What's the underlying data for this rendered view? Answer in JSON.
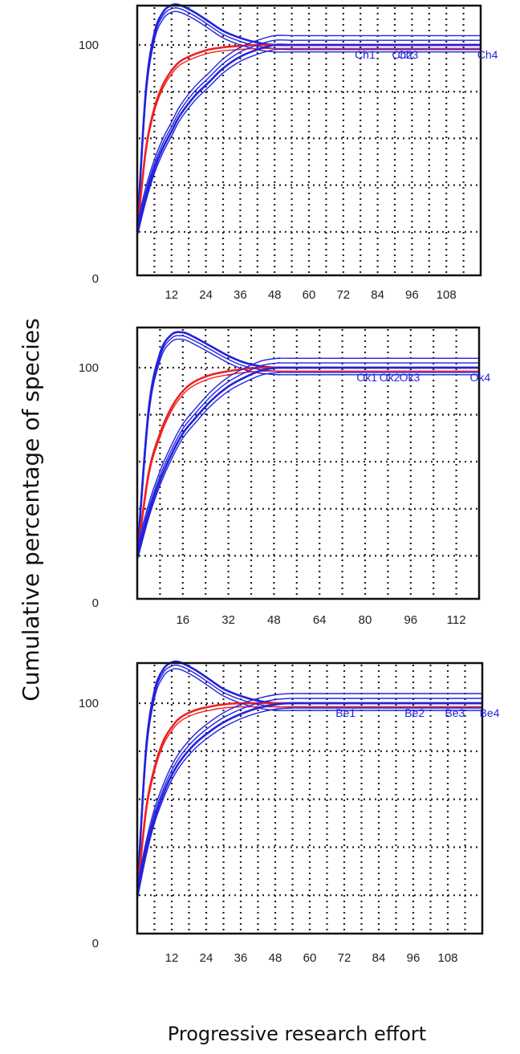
{
  "figure": {
    "ylabel": "Cumulative percentage of species",
    "xlabel": "Progressive research effort"
  },
  "colors": {
    "extremes": "#2222dd",
    "mean": "#ee2222",
    "grid": "#222222",
    "frame": "#111111",
    "label": "#2222dd"
  },
  "chart_data": [
    {
      "type": "line",
      "xlim": [
        0,
        120
      ],
      "ylim": [
        0,
        120
      ],
      "x_ticks": [
        12,
        24,
        36,
        48,
        60,
        72,
        84,
        96,
        108
      ],
      "y_ticks": [
        0,
        100
      ],
      "end_labels": [
        {
          "text": "Ch1",
          "x": 76
        },
        {
          "text": "Ch2",
          "x": 89
        },
        {
          "text": "Ch3",
          "x": 91
        },
        {
          "text": "Ch4",
          "x": 126
        }
      ],
      "series": [
        {
          "role": "upper",
          "x": [
            0,
            3,
            6,
            9,
            12,
            15,
            20,
            25,
            30,
            36,
            42,
            48,
            54,
            60,
            120
          ],
          "y": [
            20,
            80,
            105,
            114,
            117,
            117,
            114,
            110,
            106,
            103,
            101,
            100,
            100,
            100,
            100
          ]
        },
        {
          "role": "mean",
          "x": [
            0,
            3,
            6,
            9,
            12,
            15,
            20,
            25,
            30,
            36,
            42,
            48,
            54,
            60,
            120
          ],
          "y": [
            20,
            55,
            73,
            83,
            89,
            93,
            96,
            98,
            99,
            99.6,
            100,
            100,
            100,
            100,
            100
          ]
        },
        {
          "role": "lower",
          "x": [
            0,
            3,
            6,
            9,
            12,
            15,
            20,
            25,
            30,
            36,
            42,
            48,
            54,
            60,
            120
          ],
          "y": [
            20,
            35,
            47,
            56,
            63,
            70,
            78,
            84,
            90,
            95,
            98,
            100,
            100,
            100,
            100
          ]
        }
      ]
    },
    {
      "type": "line",
      "xlim": [
        0,
        120
      ],
      "ylim": [
        0,
        120
      ],
      "x_ticks": [
        16,
        32,
        48,
        64,
        80,
        96,
        112
      ],
      "y_ticks": [
        0,
        100
      ],
      "end_labels": [
        {
          "text": "Ok1",
          "x": 77
        },
        {
          "text": "Ok2",
          "x": 85
        },
        {
          "text": "Ok3",
          "x": 92
        },
        {
          "text": "Ok4",
          "x": 124
        }
      ],
      "series": [
        {
          "role": "upper",
          "x": [
            0,
            4,
            8,
            12,
            16,
            20,
            26,
            32,
            38,
            44,
            50,
            56,
            120
          ],
          "y": [
            20,
            82,
            106,
            114,
            115,
            113,
            109,
            105,
            102,
            100.5,
            100,
            100,
            100
          ]
        },
        {
          "role": "mean",
          "x": [
            0,
            4,
            8,
            12,
            16,
            20,
            26,
            32,
            38,
            44,
            50,
            56,
            120
          ],
          "y": [
            20,
            55,
            72,
            83,
            90,
            94,
            97,
            98.5,
            99.5,
            100,
            100,
            100,
            100
          ]
        },
        {
          "role": "lower",
          "x": [
            0,
            4,
            8,
            12,
            16,
            20,
            26,
            32,
            38,
            44,
            50,
            56,
            120
          ],
          "y": [
            20,
            38,
            52,
            63,
            72,
            78,
            86,
            92,
            96,
            99,
            100,
            100,
            100
          ]
        }
      ]
    },
    {
      "type": "line",
      "xlim": [
        0,
        120
      ],
      "ylim": [
        0,
        120
      ],
      "x_ticks": [
        12,
        24,
        36,
        48,
        60,
        72,
        84,
        96,
        108
      ],
      "y_ticks": [
        0,
        100
      ],
      "end_labels": [
        {
          "text": "Be1",
          "x": 69
        },
        {
          "text": "Be2",
          "x": 93
        },
        {
          "text": "Be3",
          "x": 107
        },
        {
          "text": "Be4",
          "x": 126
        }
      ],
      "series": [
        {
          "role": "upper",
          "x": [
            0,
            3,
            6,
            9,
            12,
            15,
            20,
            25,
            30,
            36,
            42,
            48,
            54,
            60,
            120
          ],
          "y": [
            20,
            80,
            105,
            114,
            117,
            117,
            114,
            110,
            106,
            103,
            101,
            100,
            100,
            100,
            100
          ]
        },
        {
          "role": "mean",
          "x": [
            0,
            3,
            6,
            9,
            12,
            15,
            20,
            25,
            30,
            36,
            42,
            48,
            54,
            60,
            120
          ],
          "y": [
            20,
            55,
            73,
            84,
            90,
            94,
            97,
            98.5,
            99.5,
            100,
            100,
            100,
            100,
            100,
            100
          ]
        },
        {
          "role": "lower",
          "x": [
            0,
            3,
            6,
            9,
            12,
            15,
            20,
            25,
            30,
            36,
            42,
            48,
            54,
            60,
            120
          ],
          "y": [
            20,
            38,
            52,
            62,
            70,
            76,
            83,
            88,
            92,
            95.5,
            98,
            99.5,
            100,
            100,
            100
          ]
        }
      ]
    }
  ]
}
